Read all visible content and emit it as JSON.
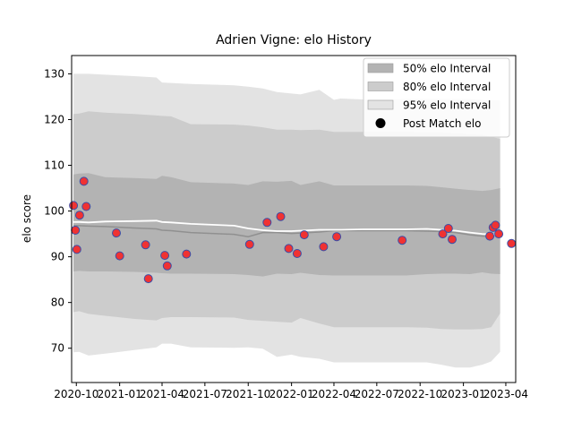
{
  "chart_data": {
    "type": "scatter",
    "title": "Adrien Vigne: elo History",
    "xlabel": "",
    "ylabel": "elo score",
    "xlim": [
      "2020-09-21",
      "2023-04-22"
    ],
    "ylim": [
      62.5,
      134
    ],
    "x_ticks": [
      {
        "date": "2020-10-01",
        "label": "2020-10"
      },
      {
        "date": "2021-01-01",
        "label": "2021-01"
      },
      {
        "date": "2021-04-01",
        "label": "2021-04"
      },
      {
        "date": "2021-07-01",
        "label": "2021-07"
      },
      {
        "date": "2021-10-01",
        "label": "2021-10"
      },
      {
        "date": "2022-01-01",
        "label": "2022-01"
      },
      {
        "date": "2022-04-01",
        "label": "2022-04"
      },
      {
        "date": "2022-07-01",
        "label": "2022-07"
      },
      {
        "date": "2022-10-01",
        "label": "2022-10"
      },
      {
        "date": "2023-01-01",
        "label": "2023-01"
      },
      {
        "date": "2023-04-01",
        "label": "2023-04"
      }
    ],
    "y_ticks": [
      70,
      80,
      90,
      100,
      110,
      120,
      130
    ],
    "colors": {
      "band_50": "#b3b3b3",
      "band_80": "#cccccc",
      "band_95": "#e3e3e3",
      "median_line": "#909090",
      "mean_line": "#ffffff",
      "point_fill": "#f03232",
      "point_edge": "#3a4ea8"
    },
    "legend": {
      "position": "upper right",
      "entries": [
        {
          "label": "50% elo Interval",
          "kind": "band_50"
        },
        {
          "label": "80% elo Interval",
          "kind": "band_80"
        },
        {
          "label": "95% elo Interval",
          "kind": "band_95"
        },
        {
          "label": "Post Match elo",
          "kind": "marker"
        }
      ]
    },
    "bands": {
      "x": [
        "2020-09-25",
        "2020-10-07",
        "2020-10-27",
        "2020-12-01",
        "2021-02-01",
        "2021-03-20",
        "2021-04-01",
        "2021-04-20",
        "2021-06-01",
        "2021-09-01",
        "2021-10-01",
        "2021-11-01",
        "2021-12-01",
        "2022-01-01",
        "2022-01-20",
        "2022-03-01",
        "2022-04-01",
        "2022-04-15",
        "2022-06-01",
        "2022-09-01",
        "2022-10-15",
        "2022-11-15",
        "2022-12-15",
        "2023-01-15",
        "2023-02-10",
        "2023-03-01",
        "2023-03-20"
      ],
      "p95_upper": [
        130,
        130,
        130,
        129.8,
        129.5,
        129.2,
        128.1,
        128,
        127.8,
        127.5,
        127.2,
        126.8,
        126,
        125.7,
        125.5,
        126.5,
        124.3,
        124.6,
        124.4,
        124.5,
        124.5,
        124.5,
        124.5,
        124.5,
        124.3,
        124.2,
        124.2
      ],
      "p80_upper": [
        121.2,
        121.3,
        121.8,
        121.5,
        121.2,
        120.9,
        120.8,
        120.7,
        119,
        118.9,
        118.7,
        118.3,
        117.8,
        117.8,
        117.7,
        117.8,
        117.3,
        117.3,
        117.3,
        117.3,
        117.2,
        117.2,
        117,
        116.8,
        116.6,
        116.2,
        115.8
      ],
      "p50_upper": [
        108,
        108.2,
        108.3,
        107.4,
        107.2,
        107,
        107.7,
        107.4,
        106.3,
        106,
        105.7,
        106.5,
        106.4,
        106.6,
        105.7,
        106.5,
        105.6,
        105.6,
        105.6,
        105.6,
        105.5,
        105.2,
        104.9,
        104.6,
        104.4,
        104.6,
        105
      ],
      "p50_lower": [
        86.8,
        86.9,
        86.8,
        86.8,
        86.7,
        86.5,
        86.4,
        86.3,
        86.3,
        86.2,
        86,
        85.7,
        86.3,
        86.2,
        86.5,
        86,
        85.9,
        85.9,
        85.9,
        85.9,
        86.2,
        86.3,
        86.3,
        86.2,
        86.6,
        86.3,
        86.2
      ],
      "p80_lower": [
        77.9,
        78.1,
        77.5,
        77.1,
        76.4,
        76.1,
        76.6,
        76.8,
        76.8,
        76.7,
        76.2,
        76,
        75.8,
        75.6,
        76.6,
        75.4,
        74.6,
        74.6,
        74.6,
        74.6,
        74.5,
        74.2,
        74.1,
        74.1,
        74.2,
        74.6,
        77.6
      ],
      "p95_lower": [
        69.1,
        69.2,
        68.4,
        68.8,
        69.6,
        70.2,
        71.0,
        71.0,
        70.2,
        70.1,
        70.2,
        69.9,
        68.1,
        68.6,
        68.1,
        67.7,
        66.9,
        66.9,
        66.9,
        66.9,
        66.9,
        66.4,
        65.8,
        65.8,
        66.4,
        67.1,
        69.2
      ],
      "median": [
        96.8,
        96.8,
        96.7,
        96.6,
        96.3,
        96.1,
        95.8,
        95.7,
        95.3,
        94.9,
        94.4,
        95.3,
        95.3,
        95.1,
        95.2,
        95.4,
        95.7,
        95.7,
        95.7,
        95.7,
        95.6,
        95.5,
        95.3,
        94.8,
        94.5,
        94.4,
        95.2
      ],
      "mean": [
        97.6,
        97.6,
        97.5,
        97.7,
        97.8,
        97.9,
        97.6,
        97.5,
        97.2,
        96.8,
        96.2,
        95.8,
        95.6,
        95.6,
        95.7,
        95.9,
        95.9,
        95.9,
        96.0,
        96.0,
        96.1,
        95.9,
        95.7,
        95.3,
        95.0,
        94.9,
        94.8
      ]
    },
    "points": {
      "name": "Post Match elo",
      "x": [
        "2020-09-25",
        "2020-09-29",
        "2020-10-02",
        "2020-10-08",
        "2020-10-17",
        "2020-10-22",
        "2020-12-25",
        "2021-01-01",
        "2021-02-25",
        "2021-03-03",
        "2021-04-07",
        "2021-04-12",
        "2021-05-23",
        "2021-10-04",
        "2021-11-10",
        "2021-12-09",
        "2021-12-26",
        "2022-01-13",
        "2022-01-28",
        "2022-03-10",
        "2022-04-07",
        "2022-08-24",
        "2022-11-18",
        "2022-11-30",
        "2022-12-08",
        "2023-02-26",
        "2023-03-05",
        "2023-03-10",
        "2023-03-17",
        "2023-04-13"
      ],
      "y": [
        101.2,
        95.8,
        91.6,
        99.1,
        106.5,
        101,
        95.2,
        90.2,
        92.6,
        85.2,
        90.3,
        88,
        90.6,
        92.7,
        97.5,
        98.8,
        91.8,
        90.7,
        94.8,
        92.2,
        94.4,
        93.6,
        95,
        96.2,
        93.8,
        94.5,
        96.4,
        96.9,
        95,
        92.9
      ]
    }
  }
}
